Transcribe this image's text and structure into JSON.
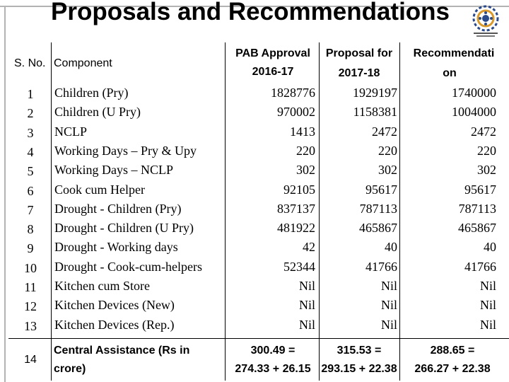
{
  "title": "Proposals and Recommendations",
  "headers": {
    "sno": "S. No.",
    "component": "Component",
    "pab_line1": "PAB Approval",
    "pab_line2": "2016-17",
    "proposal_line1": "Proposal for",
    "proposal_line2": "2017-18",
    "rec_line1": "Recommendati",
    "rec_line2": "on"
  },
  "rows": [
    {
      "sno": "1",
      "component": "Children (Pry)",
      "pab": "1828776",
      "proposal": "1929197",
      "rec": "1740000"
    },
    {
      "sno": "2",
      "component": "Children (U Pry)",
      "pab": "970002",
      "proposal": "1158381",
      "rec": "1004000"
    },
    {
      "sno": "3",
      "component": "NCLP",
      "pab": "1413",
      "proposal": "2472",
      "rec": "2472"
    },
    {
      "sno": "4",
      "component": "Working Days – Pry & Upy",
      "pab": "220",
      "proposal": "220",
      "rec": "220"
    },
    {
      "sno": "5",
      "component": "Working Days – NCLP",
      "pab": "302",
      "proposal": "302",
      "rec": "302"
    },
    {
      "sno": "6",
      "component": "Cook cum Helper",
      "pab": "92105",
      "proposal": "95617",
      "rec": "95617"
    },
    {
      "sno": "7",
      "component": "Drought  - Children (Pry)",
      "pab": "837137",
      "proposal": "787113",
      "rec": "787113"
    },
    {
      "sno": "8",
      "component": "Drought  - Children (U Pry)",
      "pab": "481922",
      "proposal": "465867",
      "rec": "465867"
    },
    {
      "sno": "9",
      "component": "Drought  - Working days",
      "pab": "42",
      "proposal": "40",
      "rec": "40"
    },
    {
      "sno": "10",
      "component": "Drought  - Cook-cum-helpers",
      "pab": "52344",
      "proposal": "41766",
      "rec": "41766"
    },
    {
      "sno": "11",
      "component": "Kitchen cum Store",
      "pab": "Nil",
      "proposal": "Nil",
      "rec": "Nil"
    },
    {
      "sno": "12",
      "component": "Kitchen Devices (New)",
      "pab": "Nil",
      "proposal": "Nil",
      "rec": "Nil"
    },
    {
      "sno": "13",
      "component": "Kitchen Devices (Rep.)",
      "pab": "Nil",
      "proposal": "Nil",
      "rec": "Nil"
    }
  ],
  "last_row": {
    "sno": "14",
    "component_line1": "Central Assistance (Rs in",
    "component_line2": "crore)",
    "pab_line1": "300.49 =",
    "pab_line2": "274.33 + 26.15",
    "proposal_line1": "315.53 =",
    "proposal_line2": "293.15 + 22.38",
    "rec_line1": "288.65 =",
    "rec_line2": "266.27 + 22.38"
  }
}
